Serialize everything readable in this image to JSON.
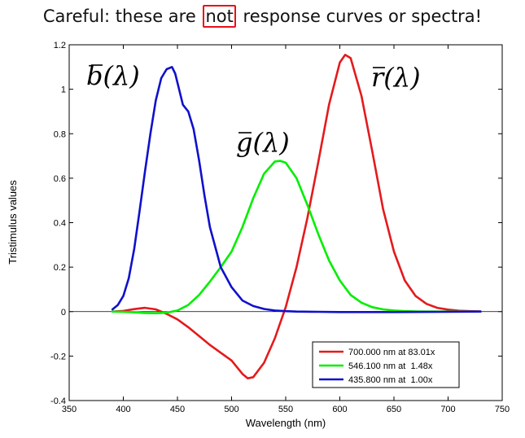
{
  "title": {
    "before": "Careful: these are ",
    "highlight": "not",
    "after": " response curves or spectra!"
  },
  "colors": {
    "red": "#e41a1c",
    "green": "#00ee00",
    "blue": "#1010cc",
    "highlight": "#e8101a"
  },
  "chart_data": {
    "type": "line",
    "xlabel": "Wavelength (nm)",
    "ylabel": "Tristimulus values",
    "xlim": [
      350,
      750
    ],
    "ylim": [
      -0.4,
      1.2
    ],
    "xticks": [
      350,
      400,
      450,
      500,
      550,
      600,
      650,
      700,
      750
    ],
    "yticks": [
      -0.4,
      -0.2,
      0,
      0.2,
      0.4,
      0.6,
      0.8,
      1,
      1.2
    ],
    "ytick_labels": [
      "-0.4",
      "-0.2",
      "0",
      "0.2",
      "0.4",
      "0.6",
      "0.8",
      "1",
      "1.2"
    ],
    "zero_line": true,
    "legend_position": "bottom-right",
    "series": [
      {
        "name": "700.000 nm at 83.01x",
        "color": "#e41a1c",
        "curve_label": "r",
        "x": [
          390,
          400,
          410,
          420,
          430,
          440,
          450,
          460,
          470,
          480,
          490,
          500,
          510,
          515,
          520,
          530,
          540,
          550,
          560,
          570,
          580,
          590,
          600,
          605,
          610,
          620,
          630,
          640,
          650,
          660,
          670,
          680,
          690,
          700,
          710,
          720,
          730
        ],
        "values": [
          0.0,
          0.003,
          0.011,
          0.017,
          0.01,
          -0.01,
          -0.035,
          -0.07,
          -0.11,
          -0.15,
          -0.185,
          -0.22,
          -0.28,
          -0.3,
          -0.295,
          -0.23,
          -0.12,
          0.02,
          0.2,
          0.42,
          0.67,
          0.93,
          1.12,
          1.155,
          1.14,
          0.97,
          0.72,
          0.46,
          0.27,
          0.14,
          0.07,
          0.035,
          0.017,
          0.009,
          0.004,
          0.002,
          0.001
        ]
      },
      {
        "name": "546.100 nm at  1.48x",
        "color": "#00ee00",
        "curve_label": "g",
        "x": [
          390,
          400,
          410,
          420,
          430,
          440,
          450,
          460,
          470,
          480,
          490,
          500,
          510,
          520,
          530,
          540,
          545,
          550,
          560,
          570,
          580,
          590,
          600,
          610,
          620,
          630,
          640,
          650,
          660,
          670,
          680,
          690,
          700,
          710,
          720,
          730
        ],
        "values": [
          0.0,
          -0.001,
          -0.003,
          -0.006,
          -0.007,
          -0.005,
          0.005,
          0.03,
          0.075,
          0.135,
          0.2,
          0.27,
          0.38,
          0.51,
          0.62,
          0.675,
          0.678,
          0.67,
          0.6,
          0.48,
          0.35,
          0.23,
          0.14,
          0.075,
          0.04,
          0.02,
          0.01,
          0.005,
          0.002,
          0.001,
          0.0,
          0.0,
          0.0,
          0.0,
          0.0,
          0.0
        ]
      },
      {
        "name": "435.800 nm at  1.00x",
        "color": "#1010cc",
        "curve_label": "b",
        "x": [
          390,
          395,
          400,
          405,
          410,
          415,
          420,
          425,
          430,
          435,
          440,
          445,
          448,
          450,
          455,
          460,
          465,
          470,
          475,
          480,
          490,
          500,
          510,
          520,
          530,
          540,
          550,
          560,
          580,
          600,
          650,
          700,
          730
        ],
        "values": [
          0.01,
          0.03,
          0.07,
          0.15,
          0.28,
          0.45,
          0.63,
          0.8,
          0.95,
          1.05,
          1.09,
          1.1,
          1.07,
          1.03,
          0.93,
          0.9,
          0.82,
          0.68,
          0.52,
          0.38,
          0.2,
          0.11,
          0.05,
          0.025,
          0.012,
          0.005,
          0.002,
          0.0,
          -0.001,
          -0.002,
          -0.002,
          -0.001,
          0.0
        ]
      }
    ]
  }
}
